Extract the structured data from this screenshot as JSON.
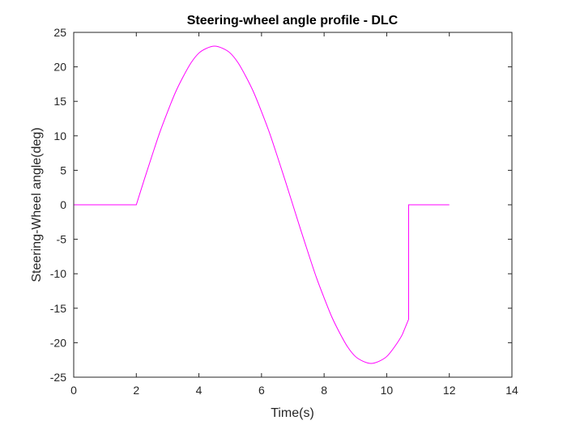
{
  "chart_data": {
    "type": "line",
    "title": "Steering-wheel angle profile - DLC",
    "xlabel": "Time(s)",
    "ylabel": "Steering-Wheel angle(deg)",
    "xlim": [
      0,
      14
    ],
    "ylim": [
      -25,
      25
    ],
    "xticks": [
      0,
      2,
      4,
      6,
      8,
      10,
      12,
      14
    ],
    "yticks": [
      -25,
      -20,
      -15,
      -10,
      -5,
      0,
      5,
      10,
      15,
      20,
      25
    ],
    "xtick_labels": [
      "0",
      "2",
      "4",
      "6",
      "8",
      "10",
      "12",
      "14"
    ],
    "ytick_labels": [
      "-25",
      "-20",
      "-15",
      "-10",
      "-5",
      "0",
      "5",
      "10",
      "15",
      "20",
      "25"
    ],
    "grid": false,
    "series": [
      {
        "color": "#ff00ff",
        "x": [
          0,
          2,
          2.25,
          2.5,
          2.75,
          3,
          3.25,
          3.5,
          3.75,
          4,
          4.25,
          4.5,
          4.75,
          5,
          5.25,
          5.5,
          5.75,
          6,
          6.25,
          6.5,
          6.75,
          7,
          7.25,
          7.5,
          7.75,
          8,
          8.25,
          8.5,
          8.75,
          9,
          9.25,
          9.5,
          9.75,
          10,
          10.25,
          10.5,
          10.7,
          10.7,
          12
        ],
        "y": [
          0,
          0,
          3.6,
          7.1,
          10.5,
          13.5,
          16.3,
          18.6,
          20.6,
          22.0,
          22.7,
          23.0,
          22.7,
          22.0,
          20.6,
          18.6,
          16.3,
          13.5,
          10.5,
          7.1,
          3.6,
          0,
          -3.6,
          -7.1,
          -10.5,
          -13.5,
          -16.3,
          -18.6,
          -20.6,
          -22.0,
          -22.7,
          -23.0,
          -22.7,
          -22.0,
          -20.6,
          -18.8,
          -16.6,
          0,
          0
        ]
      }
    ]
  }
}
